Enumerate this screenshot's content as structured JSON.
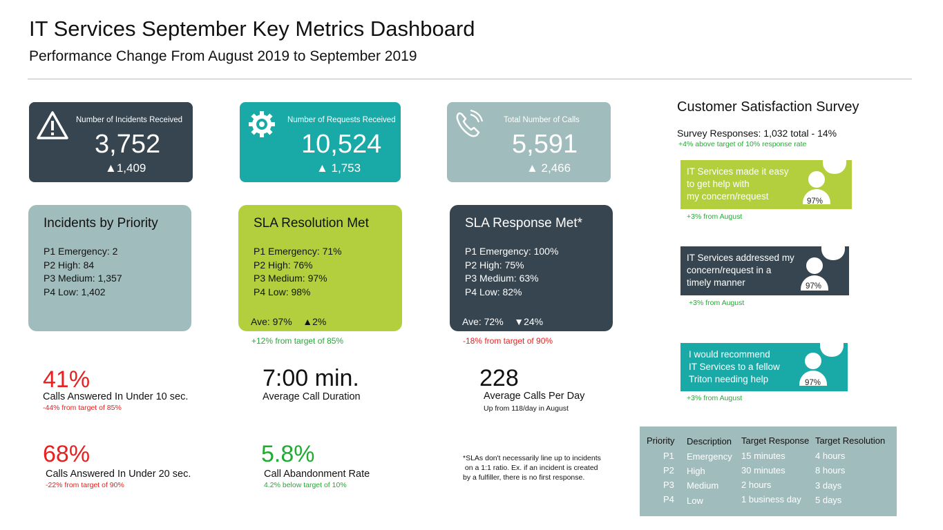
{
  "header": {
    "title": "IT Services September Key Metrics Dashboard",
    "subtitle": "Performance Change From August 2019 to September 2019"
  },
  "stat_cards": [
    {
      "label": "Number of Incidents Received",
      "value": "3,752",
      "delta": "▲1,409",
      "icon": "warning-icon",
      "color": "#36454f"
    },
    {
      "label": "Number of Requests Received",
      "value": "10,524",
      "delta": "▲ 1,753",
      "icon": "gear-icon",
      "color": "#19aaa8"
    },
    {
      "label": "Total Number of Calls",
      "value": "5,591",
      "delta": "▲ 2,466",
      "icon": "phone-icon",
      "color": "#a1bcbd"
    }
  ],
  "priority_boxes": [
    {
      "title": "Incidents by Priority",
      "lines": [
        "P1 Emergency: 2",
        "P2 High: 84",
        "P3 Medium: 1,357",
        "P4 Low: 1,402"
      ],
      "ave": "",
      "note": "",
      "color": "#a1bcbd"
    },
    {
      "title": "SLA Resolution Met",
      "lines": [
        "P1 Emergency: 71%",
        "P2 High: 76%",
        "P3 Medium: 97%",
        "P4 Low: 98%"
      ],
      "ave": "Ave: 97%    ▲2%",
      "note": "+12% from target of 85%",
      "color": "#b4cf3e"
    },
    {
      "title": "SLA Response Met*",
      "lines": [
        "P1 Emergency: 100%",
        "P2 High: 75%",
        "P3 Medium: 63%",
        "P4 Low: 82%"
      ],
      "ave": "Ave: 72%    ▼24%",
      "note": "-18% from target of 90%",
      "color": "#36454f"
    }
  ],
  "kpis": [
    {
      "value": "41%",
      "desc": "Calls Answered In Under 10 sec.",
      "sub": "-44% from target of 85%"
    },
    {
      "value": "7:00 min.",
      "desc": "Average Call Duration",
      "sub": ""
    },
    {
      "value": "228",
      "desc": "Average Calls Per Day",
      "sub": "Up from 118/day in August"
    },
    {
      "value": "68%",
      "desc": "Calls Answered In Under 20 sec.",
      "sub": "-22% from target of 90%"
    },
    {
      "value": "5.8%",
      "desc": "Call Abandonment Rate",
      "sub": "4.2% below target of 10%"
    }
  ],
  "footnote": [
    "*SLAs don't necessarily line up to incidents",
    " on a 1:1 ratio. Ex. if an incident is created",
    "by a fulfiller, there is no first response."
  ],
  "survey": {
    "title": "Customer Satisfaction Survey",
    "responses": "Survey Responses: 1,032 total - 14%",
    "responses_note": "+4% above target of 10% response rate",
    "items": [
      {
        "lines": [
          "IT Services made it easy",
          "to get help with",
          "my concern/request"
        ],
        "pct": "97%",
        "note": "+3% from August",
        "color": "#b4cf3e"
      },
      {
        "lines": [
          "IT Services addressed my",
          "concern/request in a",
          "timely manner"
        ],
        "pct": "97%",
        "note": "+3% from August",
        "color": "#36454f"
      },
      {
        "lines": [
          "I would recommend",
          "IT Services to a fellow",
          "Triton needing help"
        ],
        "pct": "97%",
        "note": "+3% from August",
        "color": "#19aaa8"
      }
    ]
  },
  "priority_table": {
    "headers": [
      "Priority",
      "Description",
      "Target Response",
      "Target Resolution"
    ],
    "rows": [
      [
        "P1",
        "Emergency",
        "15 minutes",
        "4 hours"
      ],
      [
        "P2",
        "High",
        "30 minutes",
        "8 hours"
      ],
      [
        "P3",
        "Medium",
        "2 hours",
        "3 days"
      ],
      [
        "P4",
        "Low",
        "1 business day",
        "5 days"
      ]
    ]
  }
}
